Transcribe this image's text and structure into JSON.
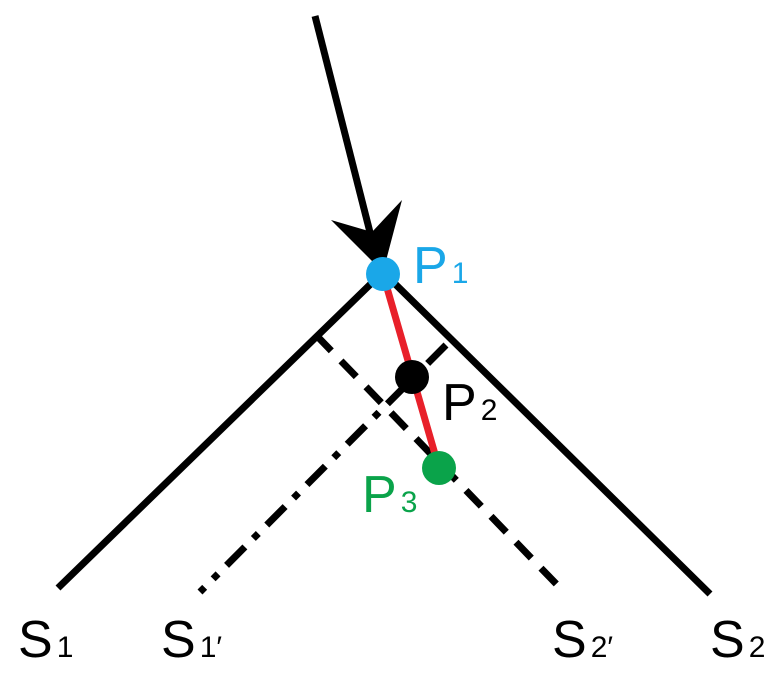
{
  "colors": {
    "line": "#000000",
    "p1": "#1aa7e8",
    "p2": "#000000",
    "p3": "#0aa34a",
    "segment": "#e8202a"
  },
  "labels": {
    "p1": {
      "main": "P",
      "sub": "1"
    },
    "p2": {
      "main": "P",
      "sub": "2"
    },
    "p3": {
      "main": "P",
      "sub": "3"
    },
    "s1": {
      "main": "S",
      "sub": "1"
    },
    "s1_prime": {
      "main": "S",
      "sub": "1′"
    },
    "s2_prime": {
      "main": "S",
      "sub": "2′"
    },
    "s2": {
      "main": "S",
      "sub": "2"
    }
  }
}
